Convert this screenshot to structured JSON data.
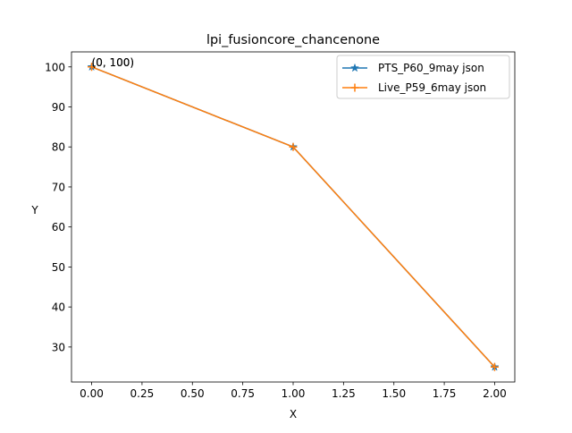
{
  "chart_data": {
    "type": "line",
    "title": "lpi_fusioncore_chancenone",
    "xlabel": "X",
    "ylabel": "Y",
    "xlim": [
      -0.1,
      2.1
    ],
    "ylim": [
      21.25,
      103.75
    ],
    "x_ticks": [
      0.0,
      0.25,
      0.5,
      0.75,
      1.0,
      1.25,
      1.5,
      1.75,
      2.0
    ],
    "x_tick_labels": [
      "0.00",
      "0.25",
      "0.50",
      "0.75",
      "1.00",
      "1.25",
      "1.50",
      "1.75",
      "2.00"
    ],
    "y_ticks": [
      30,
      40,
      50,
      60,
      70,
      80,
      90,
      100
    ],
    "y_tick_labels": [
      "30",
      "40",
      "50",
      "60",
      "70",
      "80",
      "90",
      "100"
    ],
    "grid": false,
    "legend_position": "upper right",
    "series": [
      {
        "name": "PTS_P60_9may json",
        "x": [
          0,
          1,
          2
        ],
        "y": [
          100,
          80,
          25
        ],
        "color": "#1f77b4",
        "marker": "star"
      },
      {
        "name": "Live_P59_6may json",
        "x": [
          0,
          1,
          2
        ],
        "y": [
          100,
          80,
          25
        ],
        "color": "#ff7f0e",
        "marker": "plus"
      }
    ],
    "annotations": [
      {
        "text": "(0, 100)",
        "x": 0,
        "y": 100
      }
    ]
  }
}
